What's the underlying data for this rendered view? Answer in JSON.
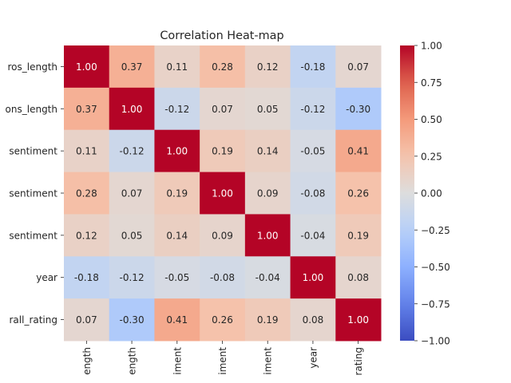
{
  "chart_data": {
    "type": "heatmap",
    "title": "Correlation Heat-map",
    "row_labels": [
      "ros_length",
      "ons_length",
      "sentiment",
      "sentiment",
      "sentiment",
      "year",
      "rall_rating"
    ],
    "col_labels": [
      "ength",
      "ength",
      "iment",
      "iment",
      "iment",
      "year",
      "rating"
    ],
    "values": [
      [
        1.0,
        0.37,
        0.11,
        0.28,
        0.12,
        -0.18,
        0.07
      ],
      [
        0.37,
        1.0,
        -0.12,
        0.07,
        0.05,
        -0.12,
        -0.3
      ],
      [
        0.11,
        -0.12,
        1.0,
        0.19,
        0.14,
        -0.05,
        0.41
      ],
      [
        0.28,
        0.07,
        0.19,
        1.0,
        0.09,
        -0.08,
        0.26
      ],
      [
        0.12,
        0.05,
        0.14,
        0.09,
        1.0,
        -0.04,
        0.19
      ],
      [
        -0.18,
        -0.12,
        -0.05,
        -0.08,
        -0.04,
        1.0,
        0.08
      ],
      [
        0.07,
        -0.3,
        0.41,
        0.26,
        0.19,
        0.08,
        1.0
      ]
    ],
    "cell_labels": [
      [
        "1.00",
        "0.37",
        "0.11",
        "0.28",
        "0.12",
        "-0.18",
        "0.07"
      ],
      [
        "0.37",
        "1.00",
        "-0.12",
        "0.07",
        "0.05",
        "-0.12",
        "-0.30"
      ],
      [
        "0.11",
        "-0.12",
        "1.00",
        "0.19",
        "0.14",
        "-0.05",
        "0.41"
      ],
      [
        "0.28",
        "0.07",
        "0.19",
        "1.00",
        "0.09",
        "-0.08",
        "0.26"
      ],
      [
        "0.12",
        "0.05",
        "0.14",
        "0.09",
        "1.00",
        "-0.04",
        "0.19"
      ],
      [
        "-0.18",
        "-0.12",
        "-0.05",
        "-0.08",
        "-0.04",
        "1.00",
        "0.08"
      ],
      [
        "0.07",
        "-0.30",
        "0.41",
        "0.26",
        "0.19",
        "0.08",
        "1.00"
      ]
    ],
    "colormap": "coolwarm",
    "colorbar": {
      "range": [
        -1.0,
        1.0
      ],
      "ticks": [
        -1.0,
        -0.75,
        -0.5,
        -0.25,
        0.0,
        0.25,
        0.5,
        0.75,
        1.0
      ],
      "tick_labels": [
        "−1.00",
        "−0.75",
        "−0.50",
        "−0.25",
        "0.00",
        "0.25",
        "0.50",
        "0.75",
        "1.00"
      ]
    },
    "legend": "colorbar-right",
    "grid": false
  }
}
